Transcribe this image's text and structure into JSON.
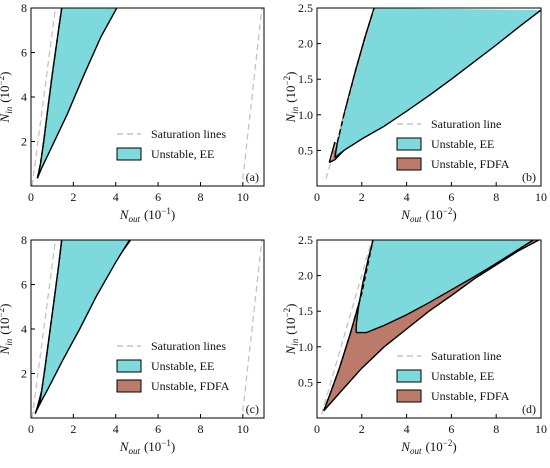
{
  "colors": {
    "ee": "#7dd9db",
    "fdfa": "#bb7b6b",
    "saturation": "#c3c3c3",
    "outline": "#000000",
    "axis": "#000000"
  },
  "legend_labels": {
    "saturation_lines": "Saturation lines",
    "saturation_line": "Saturation line",
    "unstable_ee": "Unstable, EE",
    "unstable_fdfa": "Unstable, FDFA"
  },
  "chart_data": [
    {
      "panel": "(a)",
      "type": "area",
      "x_label": {
        "base": "N",
        "sub": "out",
        "unit": "(10",
        "exp": "−1",
        "close": ")"
      },
      "y_label": {
        "base": "N",
        "sub": "in",
        "unit": "(10",
        "exp": "−2",
        "close": ")"
      },
      "xlim": [
        0,
        11
      ],
      "ylim": [
        0,
        8
      ],
      "xticks": [
        0,
        2,
        4,
        6,
        8,
        10
      ],
      "yticks": [
        2,
        4,
        6,
        8
      ],
      "xtick_labels": [
        "0",
        "2",
        "4",
        "6",
        "8",
        "10"
      ],
      "ytick_labels": [
        "2",
        "4",
        "6",
        "8"
      ],
      "legend_position": "center-right",
      "legend": [
        "saturation_lines",
        "unstable_ee"
      ],
      "saturation": [
        [
          [
            0.05,
            0.0
          ],
          [
            1.15,
            8.0
          ]
        ],
        [
          [
            10.0,
            0.3
          ],
          [
            10.9,
            8.0
          ]
        ]
      ],
      "unstable_ee": {
        "upper": [
          [
            0.3,
            0.35
          ],
          [
            0.45,
            1.0
          ],
          [
            0.6,
            2.0
          ],
          [
            0.8,
            3.5
          ],
          [
            1.0,
            5.0
          ],
          [
            1.3,
            7.0
          ],
          [
            1.45,
            8.0
          ]
        ],
        "lower": [
          [
            0.3,
            0.35
          ],
          [
            0.5,
            0.8
          ],
          [
            1.0,
            1.8
          ],
          [
            1.7,
            3.2
          ],
          [
            2.5,
            5.0
          ],
          [
            3.3,
            6.7
          ],
          [
            4.05,
            8.0
          ]
        ]
      },
      "unstable_fdfa": null
    },
    {
      "panel": "(b)",
      "type": "area",
      "x_label": {
        "base": "N",
        "sub": "out",
        "unit": "(10",
        "exp": "−2",
        "close": ")"
      },
      "y_label": {
        "base": "N",
        "sub": "in",
        "unit": "(10",
        "exp": "−2",
        "close": ")"
      },
      "xlim": [
        0,
        10
      ],
      "ylim": [
        0,
        2.5
      ],
      "xticks": [
        0,
        2,
        4,
        6,
        8,
        10
      ],
      "yticks": [
        0.5,
        1.0,
        1.5,
        2.0,
        2.5
      ],
      "xtick_labels": [
        "0",
        "2",
        "4",
        "6",
        "8",
        "10"
      ],
      "ytick_labels": [
        "0.5",
        "1.0",
        "1.5",
        "2.0",
        "2.5"
      ],
      "legend_position": "lower-right",
      "legend": [
        "saturation_line",
        "unstable_ee",
        "unstable_fdfa"
      ],
      "saturation": [
        [
          [
            0.4,
            0.1
          ],
          [
            2.6,
            2.5
          ]
        ]
      ],
      "unstable_ee": {
        "upper": [
          [
            0.8,
            0.4
          ],
          [
            0.9,
            0.6
          ],
          [
            1.2,
            1.0
          ],
          [
            1.7,
            1.6
          ],
          [
            2.15,
            2.1
          ],
          [
            2.55,
            2.5
          ]
        ],
        "lower": [
          [
            0.8,
            0.4
          ],
          [
            1.2,
            0.5
          ],
          [
            2.0,
            0.66
          ],
          [
            3.0,
            0.84
          ],
          [
            4.0,
            1.05
          ],
          [
            5.0,
            1.27
          ],
          [
            6.0,
            1.5
          ],
          [
            7.0,
            1.74
          ],
          [
            8.0,
            1.98
          ],
          [
            9.0,
            2.23
          ],
          [
            10.0,
            2.47
          ]
        ]
      },
      "unstable_fdfa": {
        "upper": [
          [
            0.55,
            0.33
          ],
          [
            0.65,
            0.45
          ],
          [
            0.8,
            0.62
          ]
        ],
        "lower": [
          [
            0.55,
            0.33
          ],
          [
            0.8,
            0.37
          ],
          [
            1.2,
            0.5
          ]
        ]
      }
    },
    {
      "panel": "(c)",
      "type": "area",
      "x_label": {
        "base": "N",
        "sub": "out",
        "unit": "(10",
        "exp": "−1",
        "close": ")"
      },
      "y_label": {
        "base": "N",
        "sub": "in",
        "unit": "(10",
        "exp": "−2",
        "close": ")"
      },
      "xlim": [
        0,
        11
      ],
      "ylim": [
        0,
        8
      ],
      "xticks": [
        0,
        2,
        4,
        6,
        8,
        10
      ],
      "yticks": [
        2,
        4,
        6,
        8
      ],
      "xtick_labels": [
        "0",
        "2",
        "4",
        "6",
        "8",
        "10"
      ],
      "ytick_labels": [
        "2",
        "4",
        "6",
        "8"
      ],
      "legend_position": "center-right",
      "legend": [
        "saturation_lines",
        "unstable_ee",
        "unstable_fdfa"
      ],
      "saturation": [
        [
          [
            0.05,
            0.0
          ],
          [
            1.15,
            8.0
          ]
        ],
        [
          [
            10.0,
            0.3
          ],
          [
            10.9,
            8.0
          ]
        ]
      ],
      "unstable_ee": {
        "upper": [
          [
            0.4,
            0.6
          ],
          [
            0.5,
            1.2
          ],
          [
            0.65,
            2.2
          ],
          [
            0.85,
            3.6
          ],
          [
            1.05,
            5.0
          ],
          [
            1.3,
            6.8
          ],
          [
            1.45,
            8.0
          ]
        ],
        "lower": [
          [
            0.4,
            0.6
          ],
          [
            0.8,
            1.3
          ],
          [
            1.5,
            2.6
          ],
          [
            2.3,
            4.0
          ],
          [
            3.1,
            5.5
          ],
          [
            4.0,
            7.0
          ],
          [
            4.65,
            8.0
          ]
        ]
      },
      "unstable_fdfa": {
        "upper": [
          [
            0.2,
            0.2
          ],
          [
            0.3,
            0.5
          ],
          [
            0.5,
            1.2
          ],
          [
            0.9,
            2.0
          ],
          [
            1.6,
            3.0
          ],
          [
            2.5,
            4.5
          ],
          [
            3.5,
            6.3
          ],
          [
            4.6,
            8.0
          ]
        ],
        "lower": [
          [
            0.2,
            0.2
          ],
          [
            0.5,
            0.8
          ],
          [
            1.0,
            1.8
          ],
          [
            1.8,
            3.2
          ],
          [
            2.7,
            4.8
          ],
          [
            3.8,
            6.8
          ],
          [
            4.7,
            8.0
          ]
        ]
      }
    },
    {
      "panel": "(d)",
      "type": "area",
      "x_label": {
        "base": "N",
        "sub": "out",
        "unit": "(10",
        "exp": "−2",
        "close": ")"
      },
      "y_label": {
        "base": "N",
        "sub": "in",
        "unit": "(10",
        "exp": "−2",
        "close": ")"
      },
      "xlim": [
        0,
        10
      ],
      "ylim": [
        0,
        2.5
      ],
      "xticks": [
        0,
        2,
        4,
        6,
        8,
        10
      ],
      "yticks": [
        0.5,
        1.0,
        1.5,
        2.0,
        2.5
      ],
      "xtick_labels": [
        "0",
        "2",
        "4",
        "6",
        "8",
        "10"
      ],
      "ytick_labels": [
        "0.5",
        "1.0",
        "1.5",
        "2.0",
        "2.5"
      ],
      "legend_position": "lower-right",
      "legend": [
        "saturation_line",
        "unstable_ee",
        "unstable_fdfa"
      ],
      "saturation": [
        [
          [
            0.2,
            0.05
          ],
          [
            2.45,
            2.5
          ]
        ]
      ],
      "unstable_ee": {
        "upper": [
          [
            1.75,
            1.2
          ],
          [
            1.75,
            1.3
          ],
          [
            1.85,
            1.55
          ],
          [
            2.05,
            1.9
          ],
          [
            2.3,
            2.25
          ],
          [
            2.5,
            2.5
          ]
        ],
        "lower": [
          [
            1.75,
            1.2
          ],
          [
            2.2,
            1.2
          ],
          [
            3.0,
            1.3
          ],
          [
            4.0,
            1.45
          ],
          [
            5.0,
            1.62
          ],
          [
            6.0,
            1.8
          ],
          [
            7.0,
            1.98
          ],
          [
            8.0,
            2.17
          ],
          [
            9.0,
            2.37
          ],
          [
            9.65,
            2.5
          ]
        ]
      },
      "unstable_fdfa": {
        "upper": [
          [
            0.3,
            0.1
          ],
          [
            0.6,
            0.35
          ],
          [
            1.0,
            0.7
          ],
          [
            1.5,
            1.2
          ],
          [
            2.0,
            1.75
          ],
          [
            2.5,
            2.5
          ]
        ],
        "lower": [
          [
            0.3,
            0.1
          ],
          [
            1.0,
            0.35
          ],
          [
            2.0,
            0.7
          ],
          [
            3.0,
            1.0
          ],
          [
            4.0,
            1.25
          ],
          [
            5.0,
            1.5
          ],
          [
            6.0,
            1.72
          ],
          [
            7.0,
            1.95
          ],
          [
            8.0,
            2.15
          ],
          [
            9.0,
            2.35
          ],
          [
            9.9,
            2.5
          ]
        ]
      }
    }
  ]
}
